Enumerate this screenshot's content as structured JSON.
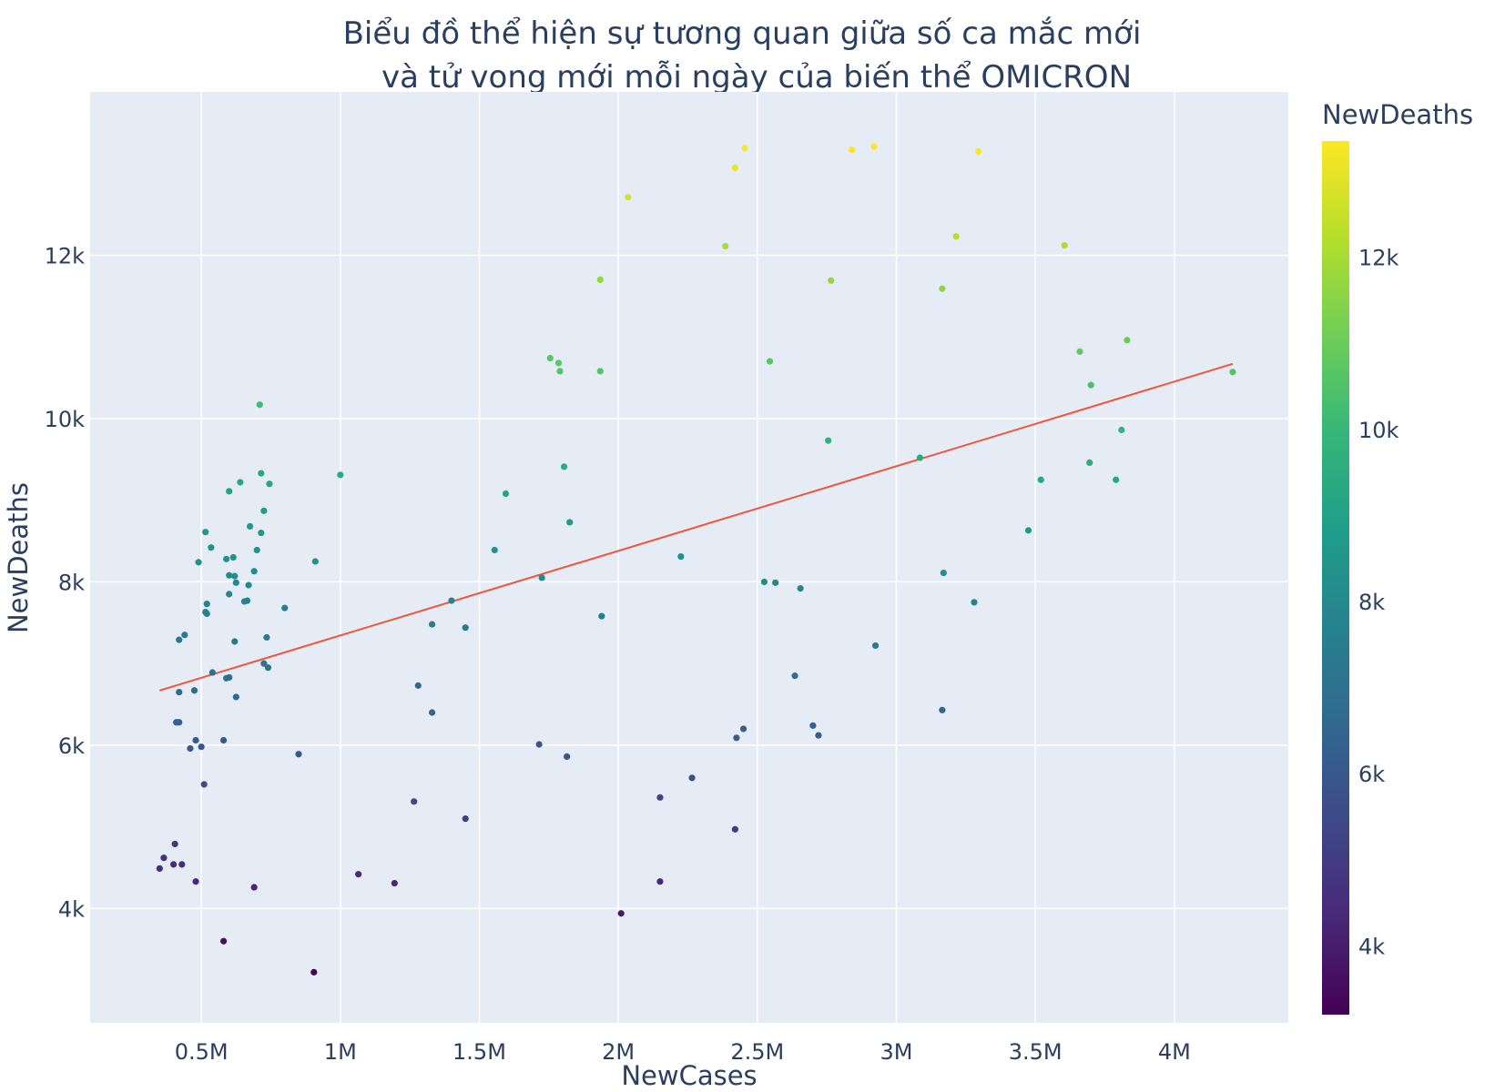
{
  "chart_data": {
    "type": "scatter",
    "title_line1": "Biểu đồ thể hiện sự tương quan giữa số ca mắc mới",
    "title_line2": "và tử vong mới mỗi ngày của biến thể OMICRON",
    "xlabel": "NewCases",
    "ylabel": "NewDeaths",
    "xlim": [
      100000,
      4410000
    ],
    "ylim": [
      2600,
      14000
    ],
    "x_ticks": [
      {
        "value": 500000,
        "label": "0.5M"
      },
      {
        "value": 1000000,
        "label": "1M"
      },
      {
        "value": 1500000,
        "label": "1.5M"
      },
      {
        "value": 2000000,
        "label": "2M"
      },
      {
        "value": 2500000,
        "label": "2.5M"
      },
      {
        "value": 3000000,
        "label": "3M"
      },
      {
        "value": 3500000,
        "label": "3.5M"
      },
      {
        "value": 4000000,
        "label": "4M"
      }
    ],
    "y_ticks": [
      {
        "value": 4000,
        "label": "4k"
      },
      {
        "value": 6000,
        "label": "6k"
      },
      {
        "value": 8000,
        "label": "8k"
      },
      {
        "value": 10000,
        "label": "10k"
      },
      {
        "value": 12000,
        "label": "12k"
      }
    ],
    "grid": true,
    "trendline": {
      "x": [
        350000,
        4210000
      ],
      "y": [
        6670,
        10670
      ],
      "color": "#ef553b"
    },
    "colorbar": {
      "title": "NewDeaths",
      "colorscale": "Viridis",
      "range": [
        3200,
        13350
      ],
      "ticks": [
        {
          "value": 4000,
          "label": "4k"
        },
        {
          "value": 6000,
          "label": "6k"
        },
        {
          "value": 8000,
          "label": "8k"
        },
        {
          "value": 10000,
          "label": "10k"
        },
        {
          "value": 12000,
          "label": "12k"
        }
      ]
    },
    "points": [
      [
        350000,
        4490
      ],
      [
        365000,
        4620
      ],
      [
        400000,
        4540
      ],
      [
        405000,
        4790
      ],
      [
        430000,
        4540
      ],
      [
        480000,
        4330
      ],
      [
        580000,
        3600
      ],
      [
        690000,
        4260
      ],
      [
        905000,
        3220
      ],
      [
        1065000,
        4420
      ],
      [
        1195000,
        4310
      ],
      [
        2010000,
        3940
      ],
      [
        2150000,
        4330
      ],
      [
        410000,
        6280
      ],
      [
        420000,
        6280
      ],
      [
        460000,
        5960
      ],
      [
        480000,
        6060
      ],
      [
        500000,
        5980
      ],
      [
        510000,
        5520
      ],
      [
        580000,
        6060
      ],
      [
        850000,
        5890
      ],
      [
        1265000,
        5310
      ],
      [
        1450000,
        5100
      ],
      [
        1715000,
        6010
      ],
      [
        1815000,
        5860
      ],
      [
        2150000,
        5360
      ],
      [
        2265000,
        5600
      ],
      [
        2420000,
        4970
      ],
      [
        2425000,
        6090
      ],
      [
        2450000,
        6200
      ],
      [
        2700000,
        6240
      ],
      [
        2720000,
        6120
      ],
      [
        3165000,
        6430
      ],
      [
        420000,
        6650
      ],
      [
        420000,
        7290
      ],
      [
        440000,
        7350
      ],
      [
        475000,
        6670
      ],
      [
        515000,
        7630
      ],
      [
        520000,
        7610
      ],
      [
        520000,
        7730
      ],
      [
        540000,
        6890
      ],
      [
        590000,
        6820
      ],
      [
        600000,
        6830
      ],
      [
        620000,
        7270
      ],
      [
        625000,
        6590
      ],
      [
        655000,
        7760
      ],
      [
        665000,
        7770
      ],
      [
        725000,
        7000
      ],
      [
        735000,
        7320
      ],
      [
        740000,
        6950
      ],
      [
        800000,
        7680
      ],
      [
        1280000,
        6730
      ],
      [
        1330000,
        7480
      ],
      [
        1330000,
        6400
      ],
      [
        1400000,
        7770
      ],
      [
        1450000,
        7440
      ],
      [
        1940000,
        7580
      ],
      [
        2635000,
        6850
      ],
      [
        2925000,
        7220
      ],
      [
        3280000,
        7750
      ],
      [
        490000,
        8240
      ],
      [
        515000,
        8610
      ],
      [
        535000,
        8420
      ],
      [
        590000,
        8280
      ],
      [
        600000,
        8080
      ],
      [
        600000,
        7850
      ],
      [
        615000,
        8300
      ],
      [
        620000,
        8070
      ],
      [
        625000,
        7990
      ],
      [
        670000,
        7960
      ],
      [
        675000,
        8680
      ],
      [
        690000,
        8130
      ],
      [
        700000,
        8390
      ],
      [
        715000,
        8600
      ],
      [
        725000,
        8870
      ],
      [
        745000,
        9200
      ],
      [
        600000,
        9110
      ],
      [
        640000,
        9220
      ],
      [
        715000,
        9330
      ],
      [
        710000,
        10170
      ],
      [
        910000,
        8250
      ],
      [
        1000000,
        9310
      ],
      [
        1555000,
        8390
      ],
      [
        1595000,
        9080
      ],
      [
        1725000,
        8050
      ],
      [
        1805000,
        9410
      ],
      [
        1825000,
        8730
      ],
      [
        2225000,
        8310
      ],
      [
        2525000,
        8000
      ],
      [
        2565000,
        7990
      ],
      [
        2655000,
        7920
      ],
      [
        2755000,
        9730
      ],
      [
        3085000,
        9520
      ],
      [
        3170000,
        8110
      ],
      [
        3475000,
        8630
      ],
      [
        3520000,
        9250
      ],
      [
        3695000,
        9460
      ],
      [
        3790000,
        9250
      ],
      [
        3810000,
        9860
      ],
      [
        1755000,
        10740
      ],
      [
        1785000,
        10680
      ],
      [
        1790000,
        10580
      ],
      [
        1935000,
        10580
      ],
      [
        1935000,
        11700
      ],
      [
        2545000,
        10700
      ],
      [
        2765000,
        11690
      ],
      [
        3165000,
        11590
      ],
      [
        3660000,
        10820
      ],
      [
        3700000,
        10410
      ],
      [
        3830000,
        10960
      ],
      [
        4210000,
        10570
      ],
      [
        2035000,
        12710
      ],
      [
        2385000,
        12110
      ],
      [
        3215000,
        12230
      ],
      [
        3605000,
        12120
      ],
      [
        2420000,
        13070
      ],
      [
        2455000,
        13310
      ],
      [
        2840000,
        13290
      ],
      [
        2920000,
        13330
      ],
      [
        3295000,
        13270
      ]
    ]
  }
}
